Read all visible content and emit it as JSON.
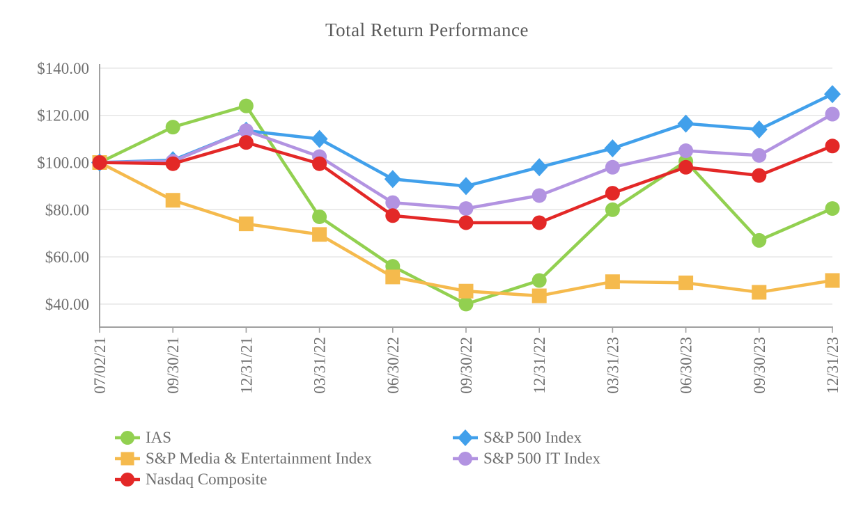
{
  "title": "Total Return Performance",
  "chart_data": {
    "type": "line",
    "title": "Total Return Performance",
    "categories": [
      "07/02/21",
      "09/30/21",
      "12/31/21",
      "03/31/22",
      "06/30/22",
      "09/30/22",
      "12/31/22",
      "03/31/23",
      "06/30/23",
      "09/30/23",
      "12/31/23"
    ],
    "series": [
      {
        "name": "IAS",
        "color": "#92D050",
        "marker": "circle",
        "values": [
          100,
          115,
          124,
          77,
          56,
          40,
          50,
          80,
          100.5,
          67,
          80.5
        ]
      },
      {
        "name": "S&P 500 Index",
        "color": "#41A0EB",
        "marker": "diamond",
        "values": [
          100,
          101,
          113.5,
          110,
          93,
          90,
          98,
          106,
          116.5,
          114,
          129
        ]
      },
      {
        "name": "S&P Media & Entertainment Index",
        "color": "#F5BA4D",
        "marker": "square",
        "values": [
          100,
          84,
          74,
          69.5,
          51.5,
          45.5,
          43.5,
          49.5,
          49,
          45,
          50
        ]
      },
      {
        "name": "S&P 500 IT Index",
        "color": "#B293E1",
        "marker": "circle",
        "values": [
          100,
          100.5,
          113.5,
          102.5,
          83,
          80.5,
          86,
          98,
          105,
          103,
          120.5
        ]
      },
      {
        "name": "Nasdaq Composite",
        "color": "#E32827",
        "marker": "circle",
        "values": [
          100,
          99.5,
          108.5,
          99.5,
          77.5,
          74.5,
          74.5,
          87,
          98,
          94.5,
          107
        ]
      }
    ],
    "y_ticks": [
      "$140.00",
      "$120.00",
      "$100.00",
      "$80.00",
      "$60.00",
      "$40.00"
    ],
    "y_tick_values": [
      140,
      120,
      100,
      80,
      60,
      40
    ],
    "ylim": [
      30,
      142
    ],
    "xlabel": "",
    "ylabel": "",
    "grid": "horizontal",
    "legend_position": "bottom"
  },
  "colors": {
    "grid": "#e3e3e3",
    "axis": "#a0a0a0",
    "tick_text": "#6e6e6e",
    "title_text": "#595959",
    "background": "#ffffff"
  }
}
